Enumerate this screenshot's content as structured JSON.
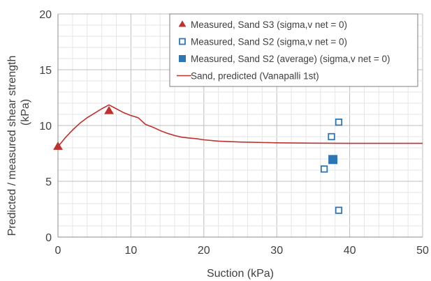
{
  "chart_data": {
    "type": "scatter",
    "xlabel": "Suction (kPa)",
    "ylabel_line1": "Predicted / measured shear strength",
    "ylabel_line2": "(kPa)",
    "xlim": [
      0,
      50
    ],
    "ylim": [
      0,
      20
    ],
    "xticks": [
      0,
      10,
      20,
      30,
      40,
      50
    ],
    "yticks": [
      0,
      5,
      10,
      15,
      20
    ],
    "grid": true,
    "legend_placement": "top-right",
    "series": [
      {
        "name": "Measured, Sand  S3 (sigma,v net = 0)",
        "kind": "marker",
        "marker": "triangle",
        "color": "#c0302c",
        "points": [
          [
            0,
            8.1
          ],
          [
            7,
            11.3
          ]
        ]
      },
      {
        "name": "Measured, Sand  S2 (sigma,v net = 0)",
        "kind": "marker",
        "marker": "square-open",
        "color": "#2e75b6",
        "points": [
          [
            38.5,
            10.3
          ],
          [
            37.5,
            9.0
          ],
          [
            36.5,
            6.1
          ],
          [
            38.5,
            2.4
          ]
        ]
      },
      {
        "name": "Measured, Sand S2 (average)  (sigma,v net = 0)",
        "kind": "marker",
        "marker": "square-filled",
        "color": "#2e75b6",
        "points": [
          [
            37.7,
            6.95
          ]
        ]
      },
      {
        "name": "Sand, predicted  (Vanapalli 1st)",
        "kind": "line",
        "color": "#c0302c",
        "points": [
          [
            0,
            8.1
          ],
          [
            1,
            8.9
          ],
          [
            2,
            9.6
          ],
          [
            3,
            10.2
          ],
          [
            4,
            10.7
          ],
          [
            5,
            11.1
          ],
          [
            6,
            11.5
          ],
          [
            7,
            11.85
          ],
          [
            8,
            11.5
          ],
          [
            9,
            11.15
          ],
          [
            10,
            10.9
          ],
          [
            11,
            10.7
          ],
          [
            12,
            10.1
          ],
          [
            13,
            9.85
          ],
          [
            14,
            9.55
          ],
          [
            15,
            9.3
          ],
          [
            16,
            9.1
          ],
          [
            17,
            8.95
          ],
          [
            18,
            8.88
          ],
          [
            19,
            8.82
          ],
          [
            20,
            8.72
          ],
          [
            22,
            8.6
          ],
          [
            25,
            8.52
          ],
          [
            30,
            8.45
          ],
          [
            35,
            8.42
          ],
          [
            40,
            8.4
          ],
          [
            45,
            8.4
          ],
          [
            50,
            8.4
          ]
        ]
      }
    ]
  }
}
